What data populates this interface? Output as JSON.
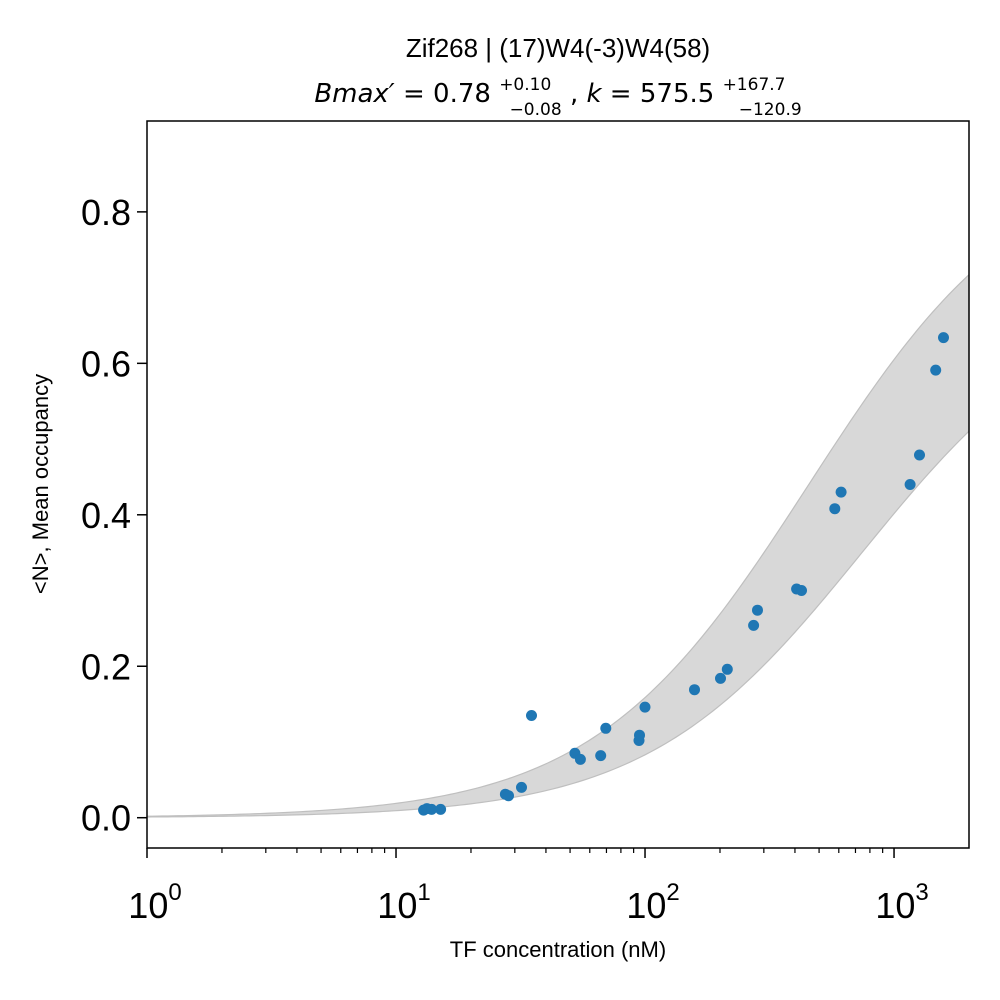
{
  "chart_data": {
    "type": "scatter",
    "title": "Zif268 | (17)W4(-3)W4(58)",
    "subtitle": {
      "bmax_symbol": "Bmax′",
      "bmax_value": "0.78",
      "bmax_plus": "+0.10",
      "bmax_minus": "−0.08",
      "k_symbol": "k",
      "k_value": "575.5",
      "k_plus": "+167.7",
      "k_minus": "−120.9"
    },
    "xlabel": "TF concentration (nM)",
    "ylabel": "<N>, Mean occupancy",
    "x_scale": "log",
    "xlim": [
      1,
      2000
    ],
    "ylim": [
      -0.04,
      0.92
    ],
    "x_ticks": [
      {
        "base": "10",
        "exp": "0",
        "value": 1
      },
      {
        "base": "10",
        "exp": "1",
        "value": 10
      },
      {
        "base": "10",
        "exp": "2",
        "value": 100
      },
      {
        "base": "10",
        "exp": "3",
        "value": 1000
      }
    ],
    "y_ticks": [
      {
        "label": "0.0",
        "value": 0.0
      },
      {
        "label": "0.2",
        "value": 0.2
      },
      {
        "label": "0.4",
        "value": 0.4
      },
      {
        "label": "0.6",
        "value": 0.6
      },
      {
        "label": "0.8",
        "value": 0.8
      }
    ],
    "points": [
      {
        "x": 12.9,
        "y": 0.01
      },
      {
        "x": 13.3,
        "y": 0.012
      },
      {
        "x": 13.9,
        "y": 0.011
      },
      {
        "x": 15.1,
        "y": 0.011
      },
      {
        "x": 27.5,
        "y": 0.031
      },
      {
        "x": 28.3,
        "y": 0.029
      },
      {
        "x": 31.9,
        "y": 0.04
      },
      {
        "x": 35.0,
        "y": 0.135
      },
      {
        "x": 52.3,
        "y": 0.085
      },
      {
        "x": 55.0,
        "y": 0.077
      },
      {
        "x": 66.4,
        "y": 0.082
      },
      {
        "x": 69.6,
        "y": 0.118
      },
      {
        "x": 94.6,
        "y": 0.102
      },
      {
        "x": 95.0,
        "y": 0.109
      },
      {
        "x": 100.0,
        "y": 0.146
      },
      {
        "x": 158,
        "y": 0.169
      },
      {
        "x": 201,
        "y": 0.184
      },
      {
        "x": 214,
        "y": 0.196
      },
      {
        "x": 273,
        "y": 0.254
      },
      {
        "x": 283,
        "y": 0.274
      },
      {
        "x": 406,
        "y": 0.302
      },
      {
        "x": 425,
        "y": 0.3
      },
      {
        "x": 578,
        "y": 0.408
      },
      {
        "x": 613,
        "y": 0.43
      },
      {
        "x": 1160,
        "y": 0.44
      },
      {
        "x": 1265,
        "y": 0.479
      },
      {
        "x": 1470,
        "y": 0.591
      },
      {
        "x": 1580,
        "y": 0.634
      }
    ],
    "fit": {
      "model": "Bmax*x/(k+x)",
      "bmax": 0.78,
      "k": 575.5,
      "band_lower": {
        "bmax": 0.7,
        "k": 743.2
      },
      "band_upper": {
        "bmax": 0.88,
        "k": 454.6
      }
    },
    "colors": {
      "points": "#1f77b4",
      "band": "#d8d8d8",
      "band_edge": "#bfbfbf"
    },
    "grid": false
  }
}
